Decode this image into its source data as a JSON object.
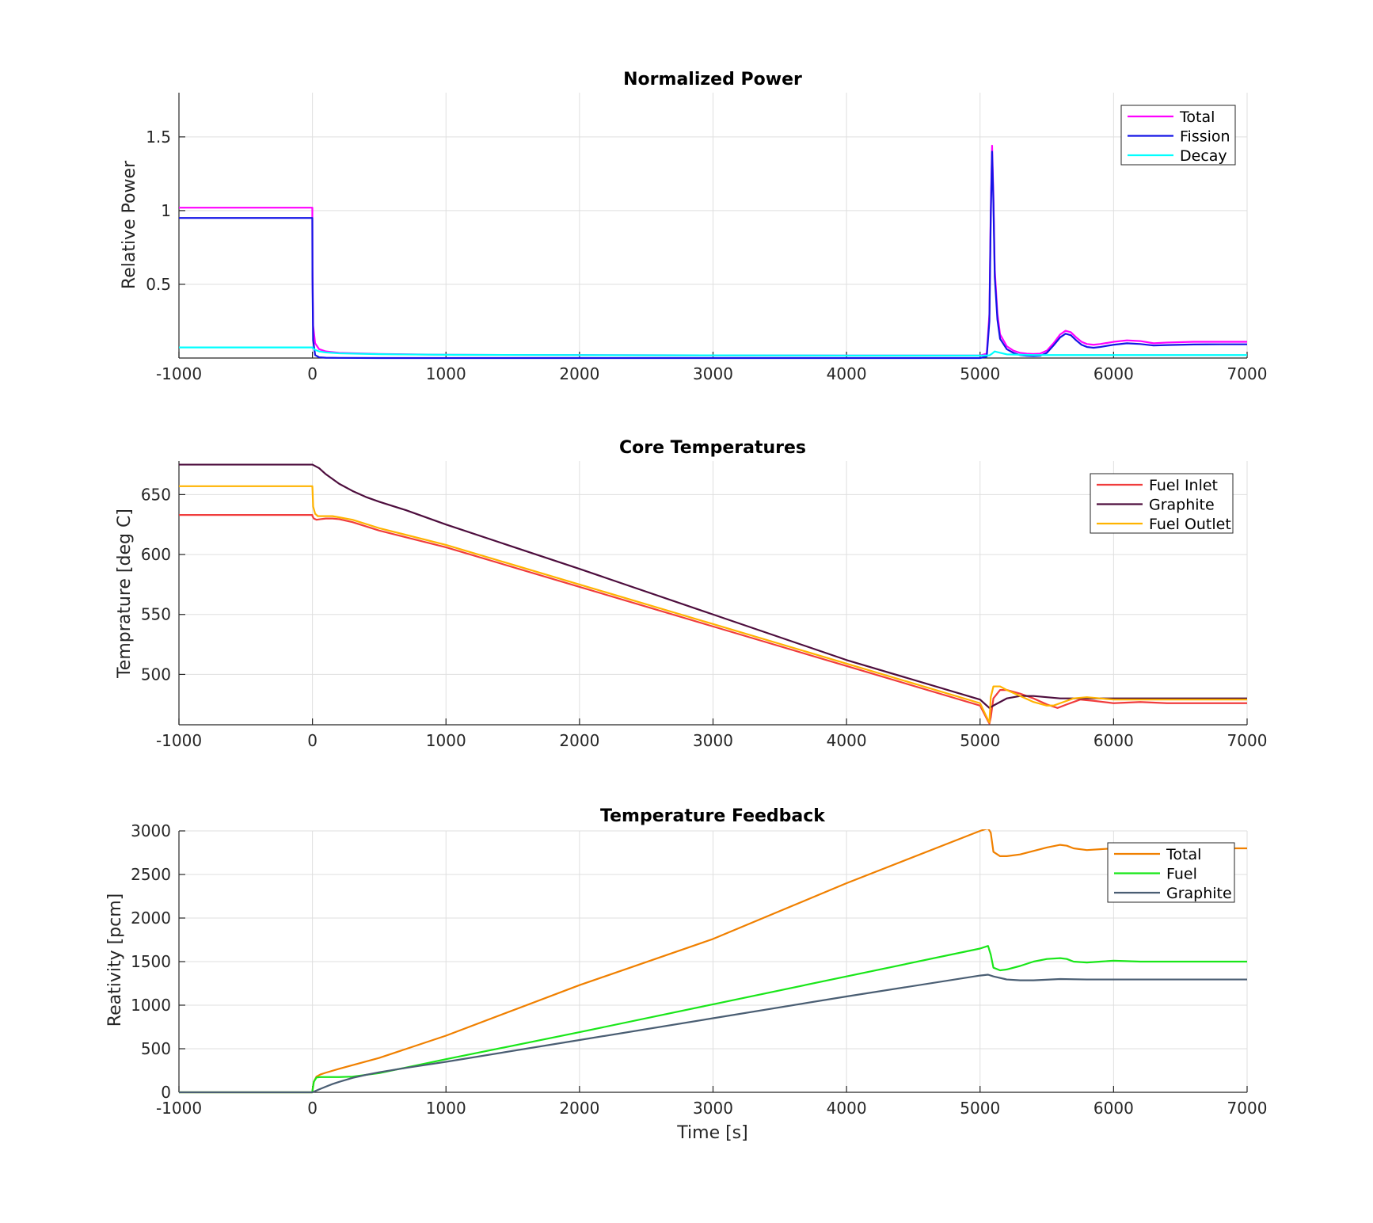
{
  "chart_data": [
    {
      "type": "line",
      "title": "Normalized Power",
      "xlabel": "",
      "ylabel": "Relative Power",
      "xlim": [
        -1000,
        7000
      ],
      "ylim": [
        0,
        1.8
      ],
      "xticks": [
        -1000,
        0,
        1000,
        2000,
        3000,
        4000,
        5000,
        6000,
        7000
      ],
      "xtick_labels": [
        "-1000",
        "0",
        "1000",
        "2000",
        "3000",
        "4000",
        "5000",
        "6000",
        "7000"
      ],
      "yticks": [
        0.5,
        1,
        1.5
      ],
      "ytick_labels": [
        "0.5",
        "1",
        "1.5"
      ],
      "grid": true,
      "legend_position": "top-right",
      "series": [
        {
          "name": "Total",
          "color": "#ff00ff",
          "x": [
            -1000,
            -1,
            0,
            5,
            20,
            50,
            100,
            200,
            500,
            1000,
            2000,
            3000,
            4000,
            5000,
            5050,
            5070,
            5080,
            5090,
            5100,
            5110,
            5130,
            5150,
            5200,
            5250,
            5300,
            5350,
            5400,
            5450,
            5500,
            5550,
            5600,
            5640,
            5680,
            5720,
            5760,
            5800,
            5850,
            5900,
            6000,
            6100,
            6200,
            6300,
            6400,
            6600,
            6800,
            7000
          ],
          "y": [
            1.02,
            1.02,
            0.62,
            0.22,
            0.1,
            0.06,
            0.045,
            0.035,
            0.028,
            0.022,
            0.02,
            0.018,
            0.017,
            0.017,
            0.03,
            0.3,
            1.0,
            1.44,
            1.1,
            0.6,
            0.3,
            0.16,
            0.08,
            0.05,
            0.035,
            0.03,
            0.028,
            0.03,
            0.05,
            0.1,
            0.16,
            0.185,
            0.175,
            0.14,
            0.11,
            0.095,
            0.09,
            0.095,
            0.11,
            0.12,
            0.115,
            0.1,
            0.105,
            0.11,
            0.11,
            0.11
          ]
        },
        {
          "name": "Fission",
          "color": "#1414e6",
          "x": [
            -1000,
            -1,
            0,
            5,
            20,
            50,
            100,
            200,
            500,
            1000,
            2000,
            3000,
            4000,
            5000,
            5050,
            5070,
            5080,
            5090,
            5100,
            5110,
            5130,
            5150,
            5200,
            5250,
            5300,
            5350,
            5400,
            5450,
            5500,
            5550,
            5600,
            5640,
            5680,
            5720,
            5760,
            5800,
            5850,
            5900,
            6000,
            6100,
            6200,
            6300,
            6400,
            6600,
            6800,
            7000
          ],
          "y": [
            0.95,
            0.95,
            0.55,
            0.12,
            0.02,
            0.005,
            0.002,
            0.001,
            0.0,
            0.0,
            0.0,
            0.0,
            0.0,
            0.0,
            0.01,
            0.25,
            0.95,
            1.4,
            1.05,
            0.55,
            0.26,
            0.13,
            0.06,
            0.035,
            0.02,
            0.015,
            0.013,
            0.015,
            0.035,
            0.085,
            0.14,
            0.165,
            0.155,
            0.12,
            0.09,
            0.075,
            0.07,
            0.075,
            0.09,
            0.1,
            0.095,
            0.085,
            0.088,
            0.092,
            0.093,
            0.093
          ]
        },
        {
          "name": "Decay",
          "color": "#00ffff",
          "x": [
            -1000,
            -1,
            0,
            5,
            20,
            50,
            100,
            200,
            500,
            1000,
            2000,
            3000,
            4000,
            5000,
            5070,
            5090,
            5110,
            5130,
            5200,
            5400,
            5600,
            6000,
            6500,
            7000
          ],
          "y": [
            0.072,
            0.072,
            0.07,
            0.065,
            0.055,
            0.045,
            0.038,
            0.032,
            0.026,
            0.022,
            0.02,
            0.018,
            0.017,
            0.017,
            0.018,
            0.03,
            0.045,
            0.04,
            0.025,
            0.02,
            0.02,
            0.02,
            0.02,
            0.02
          ]
        }
      ]
    },
    {
      "type": "line",
      "title": "Core Temperatures",
      "xlabel": "",
      "ylabel": "Temprature [deg C]",
      "xlim": [
        -1000,
        7000
      ],
      "ylim": [
        458,
        678
      ],
      "xticks": [
        -1000,
        0,
        1000,
        2000,
        3000,
        4000,
        5000,
        6000,
        7000
      ],
      "xtick_labels": [
        "-1000",
        "0",
        "1000",
        "2000",
        "3000",
        "4000",
        "5000",
        "6000",
        "7000"
      ],
      "yticks": [
        500,
        550,
        600,
        650
      ],
      "ytick_labels": [
        "500",
        "550",
        "600",
        "650"
      ],
      "grid": true,
      "legend_position": "top-right",
      "series": [
        {
          "name": "Fuel Inlet",
          "color": "#f03c3c",
          "x": [
            -1000,
            -1,
            0,
            10,
            30,
            60,
            100,
            150,
            200,
            300,
            500,
            1000,
            2000,
            3000,
            4000,
            5000,
            5060,
            5070,
            5080,
            5100,
            5150,
            5200,
            5300,
            5400,
            5500,
            5580,
            5650,
            5750,
            5850,
            6000,
            6200,
            6400,
            6600,
            6800,
            7000
          ],
          "y": [
            633,
            633,
            632,
            630,
            629,
            629.5,
            630,
            630,
            629.5,
            627,
            620,
            606,
            573,
            540,
            507,
            474,
            461,
            459,
            464,
            480,
            487,
            487,
            484,
            480,
            475,
            472,
            475,
            479,
            478,
            476,
            477,
            476,
            476,
            476,
            476
          ]
        },
        {
          "name": "Graphite",
          "color": "#4d0d3d",
          "x": [
            -1000,
            -1,
            0,
            50,
            100,
            200,
            300,
            400,
            500,
            700,
            1000,
            2000,
            3000,
            4000,
            5000,
            5070,
            5100,
            5150,
            5200,
            5300,
            5400,
            5500,
            5600,
            5700,
            5800,
            6000,
            6500,
            7000
          ],
          "y": [
            675,
            675,
            675,
            672,
            667,
            659,
            653,
            648,
            644,
            637,
            625,
            588,
            550,
            512,
            479,
            472,
            474,
            477,
            480,
            482,
            482,
            481,
            480,
            480,
            480,
            480,
            480,
            480
          ]
        },
        {
          "name": "Fuel Outlet",
          "color": "#ffb300",
          "x": [
            -1000,
            -1,
            0,
            5,
            20,
            40,
            60,
            100,
            150,
            200,
            300,
            500,
            1000,
            2000,
            3000,
            4000,
            5000,
            5060,
            5070,
            5080,
            5100,
            5150,
            5200,
            5300,
            5400,
            5500,
            5550,
            5600,
            5650,
            5700,
            5800,
            5900,
            6000,
            6200,
            6400,
            6600,
            6800,
            7000
          ],
          "y": [
            657,
            657,
            655,
            640,
            634,
            632,
            632,
            632,
            632,
            631,
            629,
            622,
            608,
            575,
            542,
            509,
            476,
            462,
            460,
            481,
            490,
            490,
            487,
            482,
            477,
            474,
            474,
            476,
            478,
            480,
            481,
            480,
            479,
            479,
            479,
            479,
            479,
            479
          ]
        }
      ]
    },
    {
      "type": "line",
      "title": "Temperature Feedback",
      "xlabel": "Time [s]",
      "ylabel": "Reativity [pcm]",
      "xlim": [
        -1000,
        7000
      ],
      "ylim": [
        0,
        3000
      ],
      "xticks": [
        -1000,
        0,
        1000,
        2000,
        3000,
        4000,
        5000,
        6000,
        7000
      ],
      "xtick_labels": [
        "-1000",
        "0",
        "1000",
        "2000",
        "3000",
        "4000",
        "5000",
        "6000",
        "7000"
      ],
      "yticks": [
        0,
        500,
        1000,
        1500,
        2000,
        2500,
        3000
      ],
      "ytick_labels": [
        "0",
        "500",
        "1000",
        "1500",
        "2000",
        "2500",
        "3000"
      ],
      "grid": true,
      "legend_position": "top-right",
      "series": [
        {
          "name": "Total",
          "color": "#f08000",
          "x": [
            -1000,
            -1,
            0,
            10,
            30,
            60,
            100,
            200,
            500,
            1000,
            2000,
            3000,
            4000,
            5000,
            5060,
            5080,
            5100,
            5150,
            5200,
            5300,
            5400,
            5500,
            5600,
            5650,
            5700,
            5800,
            5900,
            6000,
            6200,
            6400,
            6600,
            6800,
            7000
          ],
          "y": [
            0,
            0,
            20,
            120,
            180,
            205,
            225,
            270,
            395,
            650,
            1230,
            1760,
            2400,
            3000,
            3030,
            2980,
            2760,
            2710,
            2710,
            2730,
            2770,
            2810,
            2840,
            2830,
            2800,
            2780,
            2790,
            2800,
            2810,
            2800,
            2800,
            2800,
            2800
          ]
        },
        {
          "name": "Fuel",
          "color": "#19e619",
          "x": [
            -1000,
            -1,
            0,
            10,
            30,
            60,
            100,
            200,
            300,
            500,
            1000,
            2000,
            3000,
            4000,
            5000,
            5060,
            5080,
            5100,
            5150,
            5200,
            5300,
            5400,
            5500,
            5600,
            5650,
            5700,
            5800,
            5900,
            6000,
            6200,
            6400,
            6600,
            6800,
            7000
          ],
          "y": [
            0,
            0,
            20,
            120,
            170,
            175,
            175,
            175,
            180,
            220,
            380,
            690,
            1010,
            1330,
            1650,
            1680,
            1580,
            1430,
            1400,
            1410,
            1450,
            1500,
            1530,
            1540,
            1530,
            1500,
            1490,
            1500,
            1510,
            1500,
            1500,
            1500,
            1500,
            1500
          ]
        },
        {
          "name": "Graphite",
          "color": "#4a5e73",
          "x": [
            -1000,
            -1,
            0,
            30,
            60,
            100,
            150,
            200,
            300,
            400,
            500,
            700,
            1000,
            2000,
            3000,
            4000,
            5000,
            5060,
            5100,
            5200,
            5300,
            5400,
            5600,
            5800,
            6000,
            6500,
            7000
          ],
          "y": [
            0,
            0,
            0,
            20,
            40,
            65,
            95,
            120,
            165,
            200,
            230,
            280,
            350,
            600,
            850,
            1100,
            1340,
            1350,
            1330,
            1295,
            1285,
            1285,
            1300,
            1295,
            1295,
            1295,
            1295
          ]
        }
      ]
    }
  ]
}
